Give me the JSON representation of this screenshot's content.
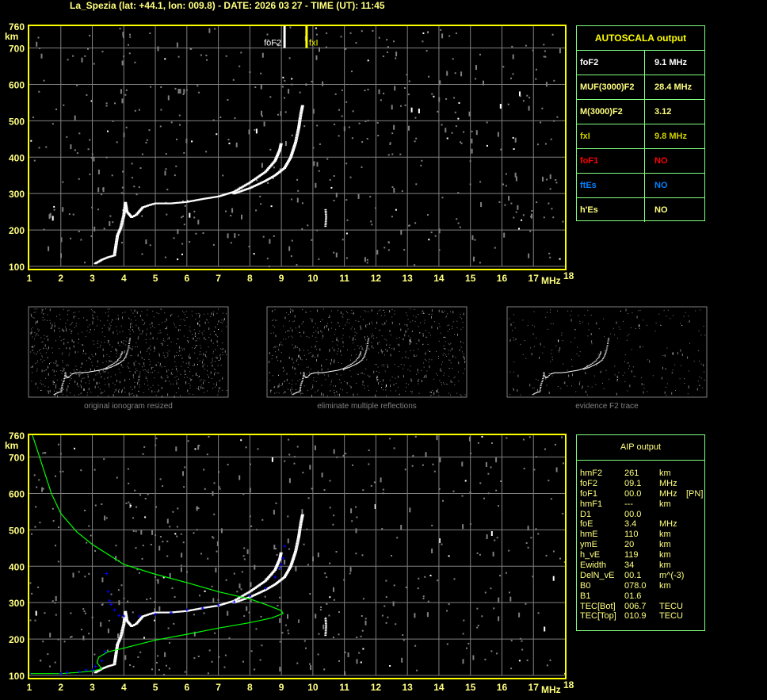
{
  "title": "La_Spezia (lat: +44.1, lon: 009.8) - DATE: 2026 03 27 - TIME (UT): 11:45",
  "autoscala": {
    "header": "AUTOSCALA output",
    "rows": [
      {
        "key": "foF2",
        "value": "9.1 MHz",
        "color": "#ffffff"
      },
      {
        "key": "MUF(3000)F2",
        "value": "28.4 MHz",
        "color": "#ffff80"
      },
      {
        "key": "M(3000)F2",
        "value": "3.12",
        "color": "#ffff80"
      },
      {
        "key": "fxI",
        "value": "9.8 MHz",
        "color": "#d0d000"
      },
      {
        "key": "foF1",
        "value": "NO",
        "color": "#ff0000"
      },
      {
        "key": "ftEs",
        "value": "NO",
        "color": "#0080ff"
      },
      {
        "key": "h'Es",
        "value": "NO",
        "color": "#ffff80"
      }
    ]
  },
  "aip": {
    "header": "AIP output",
    "rows": [
      {
        "k": "hmF2",
        "v": "261",
        "u": "km",
        "x": ""
      },
      {
        "k": "foF2",
        "v": "09.1",
        "u": "MHz",
        "x": ""
      },
      {
        "k": "foF1",
        "v": "00.0",
        "u": "MHz",
        "x": "[PN]"
      },
      {
        "k": "hmF1",
        "v": "---",
        "u": "km",
        "x": ""
      },
      {
        "k": "D1",
        "v": "00.0",
        "u": "",
        "x": ""
      },
      {
        "k": "foE",
        "v": "3.4",
        "u": "MHz",
        "x": ""
      },
      {
        "k": "hmE",
        "v": "110",
        "u": "km",
        "x": ""
      },
      {
        "k": "ymE",
        "v": "20",
        "u": "km",
        "x": ""
      },
      {
        "k": "h_vE",
        "v": "119",
        "u": "km",
        "x": ""
      },
      {
        "k": "Ewidth",
        "v": "34",
        "u": "km",
        "x": ""
      },
      {
        "k": "DelN_vE",
        "v": "00.1",
        "u": "m^(-3)",
        "x": ""
      },
      {
        "k": "B0",
        "v": "078.0",
        "u": "km",
        "x": ""
      },
      {
        "k": "B1",
        "v": "01.6",
        "u": "",
        "x": ""
      },
      {
        "k": "TEC[Bot]",
        "v": "006.7",
        "u": "TECU",
        "x": ""
      },
      {
        "k": "TEC[Top]",
        "v": "010.9",
        "u": "TECU",
        "x": ""
      }
    ]
  },
  "captions": [
    "original ionogram resized",
    "eliminate multiple reflections",
    "evidence F2 trace"
  ],
  "chart_data": {
    "type": "scatter",
    "xlabel": "MHz",
    "ylabel": "km",
    "xlim": [
      1,
      18
    ],
    "ylim": [
      100,
      760
    ],
    "xticks": [
      "1",
      "2",
      "3",
      "4",
      "5",
      "6",
      "7",
      "8",
      "9",
      "10",
      "11",
      "12",
      "13",
      "14",
      "15",
      "16",
      "17",
      "18"
    ],
    "yticks": [
      "760",
      "700",
      "600",
      "500",
      "400",
      "300",
      "200",
      "100"
    ],
    "grid": true,
    "markers": [
      {
        "label": "foF2",
        "freq": 9.1,
        "color": "#ffffff"
      },
      {
        "label": "fxI",
        "freq": 9.8,
        "color": "#ffff00"
      }
    ],
    "o_trace": [
      [
        3.1,
        108
      ],
      [
        3.3,
        118
      ],
      [
        3.5,
        125
      ],
      [
        3.7,
        130
      ],
      [
        3.8,
        185
      ],
      [
        3.9,
        205
      ],
      [
        4.0,
        240
      ],
      [
        4.05,
        275
      ],
      [
        4.1,
        250
      ],
      [
        4.25,
        235
      ],
      [
        4.4,
        242
      ],
      [
        4.6,
        262
      ],
      [
        4.8,
        268
      ],
      [
        5.0,
        273
      ],
      [
        5.5,
        273
      ],
      [
        6.0,
        277
      ],
      [
        6.5,
        285
      ],
      [
        7.0,
        292
      ],
      [
        7.5,
        305
      ],
      [
        8.0,
        330
      ],
      [
        8.5,
        360
      ],
      [
        8.8,
        390
      ],
      [
        8.95,
        420
      ],
      [
        9.0,
        440
      ]
    ],
    "x_trace": [
      [
        7.5,
        300
      ],
      [
        8.0,
        315
      ],
      [
        8.5,
        335
      ],
      [
        8.8,
        350
      ],
      [
        9.1,
        370
      ],
      [
        9.3,
        400
      ],
      [
        9.45,
        440
      ],
      [
        9.55,
        480
      ],
      [
        9.62,
        520
      ],
      [
        9.68,
        545
      ]
    ],
    "spurious": [
      [
        10.4,
        210
      ],
      [
        10.42,
        235
      ],
      [
        10.4,
        260
      ]
    ],
    "aip_virtual_height": [
      [
        1.0,
        105
      ],
      [
        2.0,
        105
      ],
      [
        2.2,
        108
      ],
      [
        2.6,
        110
      ],
      [
        2.8,
        115
      ],
      [
        3.0,
        115
      ],
      [
        3.1,
        125
      ],
      [
        3.3,
        140
      ],
      [
        3.4,
        165
      ]
    ],
    "aip_virtual_height_f": [
      [
        3.45,
        380
      ],
      [
        3.5,
        330
      ],
      [
        3.55,
        305
      ],
      [
        3.6,
        295
      ],
      [
        3.7,
        280
      ],
      [
        3.85,
        265
      ],
      [
        4.0,
        263
      ],
      [
        4.5,
        263
      ],
      [
        5.0,
        268
      ],
      [
        5.5,
        272
      ],
      [
        6.0,
        280
      ],
      [
        6.5,
        285
      ],
      [
        7.0,
        293
      ],
      [
        7.5,
        302
      ],
      [
        8.0,
        318
      ],
      [
        8.5,
        340
      ],
      [
        8.8,
        370
      ],
      [
        8.95,
        395
      ],
      [
        9.0,
        405
      ],
      [
        9.05,
        422
      ],
      [
        9.1,
        455
      ]
    ],
    "aip_real_height": [
      [
        1.0,
        105
      ],
      [
        2.0,
        105
      ],
      [
        2.5,
        108
      ],
      [
        3.0,
        112
      ],
      [
        3.3,
        118
      ],
      [
        3.15,
        135
      ],
      [
        3.2,
        150
      ],
      [
        3.5,
        165
      ],
      [
        4,
        175
      ],
      [
        5,
        197
      ],
      [
        6,
        213
      ],
      [
        7,
        230
      ],
      [
        8,
        245
      ],
      [
        8.7,
        258
      ],
      [
        9.05,
        270
      ],
      [
        9.0,
        278
      ],
      [
        8.5,
        295
      ],
      [
        8,
        310
      ],
      [
        7,
        330
      ],
      [
        6,
        355
      ],
      [
        5,
        378
      ],
      [
        4,
        405
      ],
      [
        3,
        460
      ],
      [
        2.5,
        495
      ],
      [
        2,
        545
      ],
      [
        1.7,
        600
      ],
      [
        1.4,
        680
      ],
      [
        1.1,
        760
      ]
    ],
    "colors": {
      "axis": "#ffff00",
      "grid": "#808080",
      "o_trace": "#ffffff",
      "virtual_fit": "#0000ff",
      "real_profile": "#00ff00",
      "labels": "#ffff80"
    }
  }
}
